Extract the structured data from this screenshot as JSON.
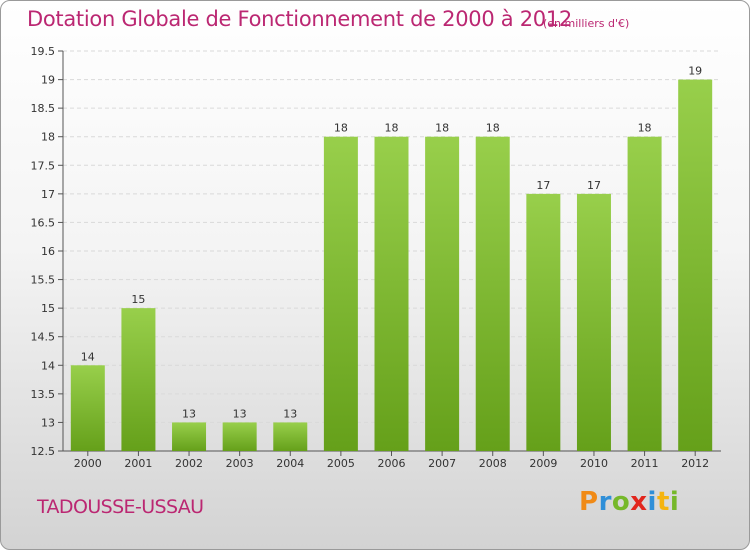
{
  "header": {
    "title": "Dotation Globale de Fonctionnement de 2000 à 2012",
    "subtitle": "(en milliers d'€)"
  },
  "footer": {
    "commune": "TADOUSSE-USSAU",
    "logo": "Proxiti",
    "logo_colors": [
      "#f08a16",
      "#2f8fd8",
      "#76b82a",
      "#e2261d",
      "#2f8fd8",
      "#f5b40f",
      "#76b82a"
    ]
  },
  "chart_data": {
    "type": "bar",
    "categories": [
      "2000",
      "2001",
      "2002",
      "2003",
      "2004",
      "2005",
      "2006",
      "2007",
      "2008",
      "2009",
      "2010",
      "2011",
      "2012"
    ],
    "values": [
      14,
      15,
      13,
      13,
      13,
      18,
      18,
      18,
      18,
      17,
      17,
      18,
      19
    ],
    "data_labels": [
      "14",
      "15",
      "13",
      "13",
      "13",
      "18",
      "18",
      "18",
      "18",
      "17",
      "17",
      "18",
      "19"
    ],
    "ylim": [
      12.5,
      19.5
    ],
    "yticks": [
      12.5,
      13,
      13.5,
      14,
      14.5,
      15,
      15.5,
      16,
      16.5,
      17,
      17.5,
      18,
      18.5,
      19,
      19.5
    ],
    "ytick_labels": [
      "12.5",
      "13",
      "13.5",
      "14",
      "14.5",
      "15",
      "15.5",
      "16",
      "16.5",
      "17",
      "17.5",
      "18",
      "18.5",
      "19",
      "19.5"
    ],
    "grid": true,
    "bar_color_top": "#98cf4b",
    "bar_color_bottom": "#65a01a"
  }
}
